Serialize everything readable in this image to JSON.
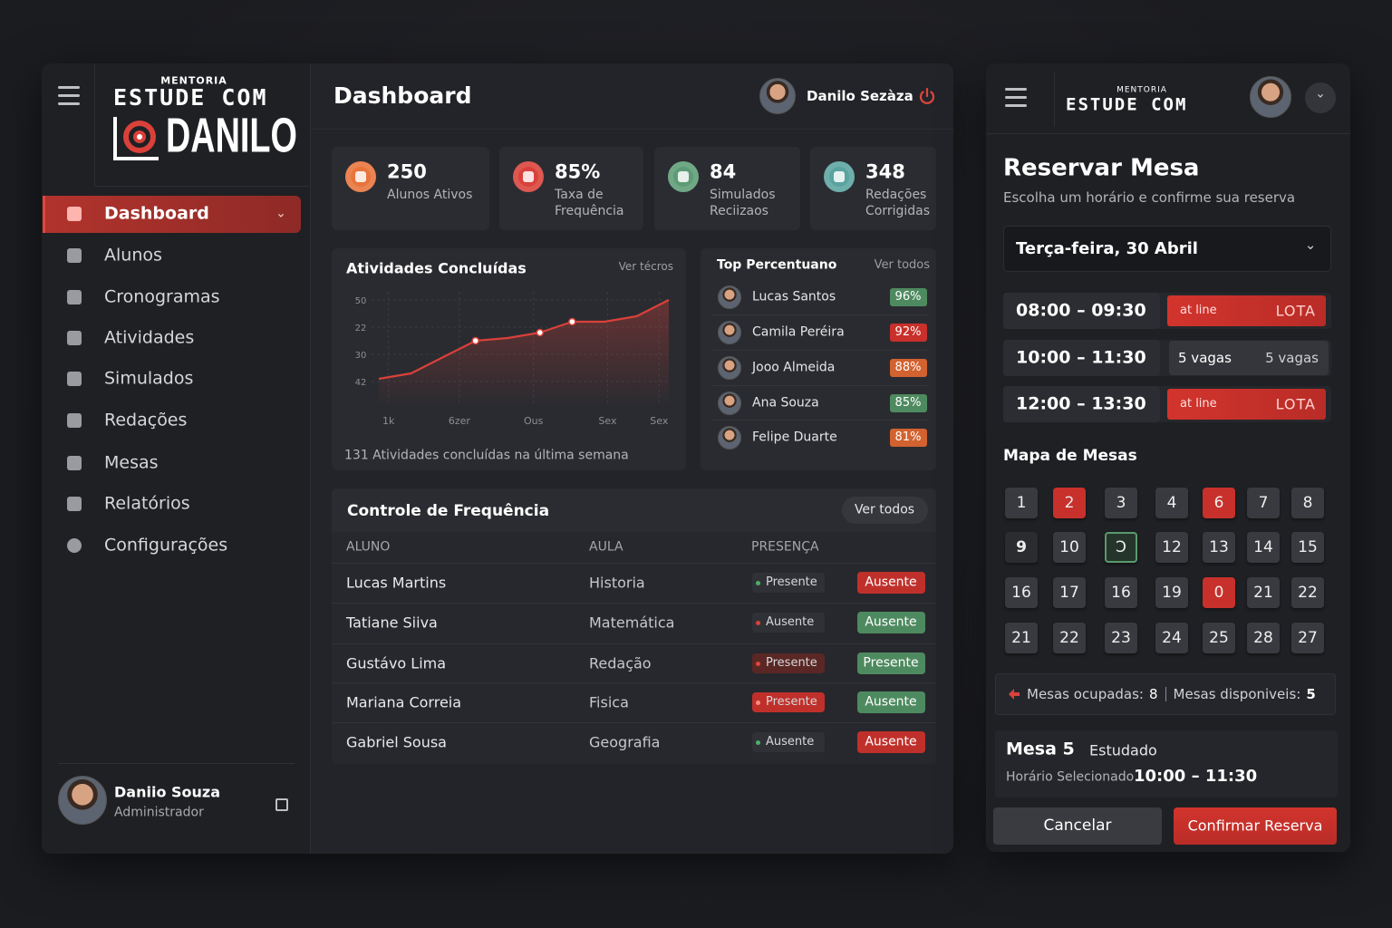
{
  "sidebar": {
    "logo": {
      "tag": "MENTORIA",
      "line1": "ESTUDE COM",
      "line2": "DANILO"
    },
    "nav": [
      "Dashboard",
      "Alunos",
      "Cronogramas",
      "Atividades",
      "Simulados",
      "Redações",
      "Mesas",
      "Relatórios",
      "Configurações"
    ],
    "user": {
      "name": "Daniio Souza",
      "role": "Administrador"
    }
  },
  "header": {
    "title": "Dashboard",
    "user": "Danilo Sezàza"
  },
  "stats": [
    {
      "value": 250,
      "label": "Alunos Ativos",
      "color": "#e8743b"
    },
    {
      "value": "85%",
      "label": "Taxa de Frequência",
      "color": "#d9413a"
    },
    {
      "value": 84,
      "label": "Simulados Reciizaos",
      "color": "#5d9c76"
    },
    {
      "value": 348,
      "label": "Redações Corrigidas",
      "color": "#5aa3a0"
    }
  ],
  "activity": {
    "title": "Atividades Concluídas",
    "link": "Ver técros",
    "footer": "131 Atividades concluídas na última semana",
    "chart_data": {
      "type": "line",
      "x": [
        0,
        1,
        2,
        3,
        4,
        5,
        6,
        7,
        8,
        9
      ],
      "values": [
        0.1,
        0.3,
        0.9,
        1.5,
        1.6,
        1.8,
        2.2,
        2.2,
        2.4,
        3.0
      ],
      "color": "#d9413a",
      "xlim": [
        0,
        9
      ],
      "xticks": [
        {
          "value": 0.3,
          "label": "1k"
        },
        {
          "value": 2.5,
          "label": "6zer"
        },
        {
          "value": 4.8,
          "label": "Ous"
        },
        {
          "value": 7.1,
          "label": "Sex"
        },
        {
          "value": 8.7,
          "label": "Sex"
        }
      ],
      "ylim": [
        -0.9,
        3.3
      ],
      "yticks": [
        {
          "value": 3,
          "label": "50"
        },
        {
          "value": 2,
          "label": "22"
        },
        {
          "value": 1,
          "label": "30"
        },
        {
          "value": 0,
          "label": "42"
        }
      ],
      "grid": true
    }
  },
  "top": {
    "title": "Top Percentuano",
    "link": "Ver todos",
    "rows": [
      {
        "name": "Lucas Santos",
        "pct": "96%",
        "color": "#4e8a5f"
      },
      {
        "name": "Camila Peréira",
        "pct": "92%",
        "color": "#c8302b"
      },
      {
        "name": "Jooo Almeida",
        "pct": "88%",
        "color": "#d2622f"
      },
      {
        "name": "Ana Souza",
        "pct": "85%",
        "color": "#4e8a5f"
      },
      {
        "name": "Felipe Duarte",
        "pct": "81%",
        "color": "#d2622f"
      }
    ]
  },
  "frequency": {
    "title": "Controle de Frequência",
    "button": "Ver todos",
    "columns": [
      "ALUNO",
      "AULA",
      "PRESENÇA"
    ],
    "rows": [
      {
        "name": "Lucas Martins",
        "aula": "Historia",
        "status": {
          "text": "Presente",
          "bg": "#303136",
          "dot": "#4caf6a"
        },
        "result": {
          "text": "Ausente",
          "bg": "#c0302b"
        }
      },
      {
        "name": "Tatiane Siiva",
        "aula": "Matemática",
        "status": {
          "text": "Ausente",
          "bg": "#303136",
          "dot": "#d9413a"
        },
        "result": {
          "text": "Ausente",
          "bg": "#4e8a5f"
        }
      },
      {
        "name": "Gustávo Lima",
        "aula": "Redação",
        "status": {
          "text": "Presente",
          "bg": "#5a2724",
          "dot": "#e0463d"
        },
        "result": {
          "text": "Presente",
          "bg": "#4e8a5f"
        }
      },
      {
        "name": "Mariana Correia",
        "aula": "Fisica",
        "status": {
          "text": "Presente",
          "bg": "#c0302b",
          "dot": "#ff8a80"
        },
        "result": {
          "text": "Ausente",
          "bg": "#4e8a5f"
        }
      },
      {
        "name": "Gabriel Sousa",
        "aula": "Geografia",
        "status": {
          "text": "Ausente",
          "bg": "#303136",
          "dot": "#4caf6a"
        },
        "result": {
          "text": "Ausente",
          "bg": "#c0302b"
        }
      }
    ]
  },
  "reserve": {
    "logo": {
      "tag": "MENTORIA",
      "line1": "ESTUDE COM"
    },
    "title": "Reservar Mesa",
    "subtitle": "Escolha um horário e confirme sua reserva",
    "date": "Terça-feira, 30 Abril",
    "slots": [
      {
        "time": "08:00 – 09:30",
        "left": "at line",
        "right": "LOTA",
        "full": true
      },
      {
        "time": "10:00 – 11:30",
        "left": "5 vagas",
        "right": "5 vagas",
        "full": false
      },
      {
        "time": "12:00 – 13:30",
        "left": "at line",
        "right": "LOTA",
        "full": true
      }
    ],
    "map_title": "Mapa de Mesas",
    "tables": [
      [
        {
          "label": "1",
          "state": "free"
        },
        {
          "label": "2",
          "state": "occupied"
        },
        {
          "label": "3",
          "state": "free"
        },
        {
          "label": "4",
          "state": "free"
        },
        {
          "label": "6",
          "state": "occupied"
        },
        {
          "label": "7",
          "state": "free"
        },
        {
          "label": "8",
          "state": "free"
        }
      ],
      [
        {
          "label": "9",
          "state": "dark"
        },
        {
          "label": "10",
          "state": "free"
        },
        {
          "label": "Ↄ",
          "state": "selected"
        },
        {
          "label": "12",
          "state": "free"
        },
        {
          "label": "13",
          "state": "free"
        },
        {
          "label": "14",
          "state": "free"
        },
        {
          "label": "15",
          "state": "free"
        }
      ],
      [
        {
          "label": "16",
          "state": "free"
        },
        {
          "label": "17",
          "state": "free"
        },
        {
          "label": "16",
          "state": "free"
        },
        {
          "label": "19",
          "state": "free"
        },
        {
          "label": "0",
          "state": "occupied"
        },
        {
          "label": "21",
          "state": "free"
        },
        {
          "label": "22",
          "state": "free"
        }
      ],
      [
        {
          "label": "21",
          "state": "free"
        },
        {
          "label": "22",
          "state": "free"
        },
        {
          "label": "23",
          "state": "free"
        },
        {
          "label": "24",
          "state": "free"
        },
        {
          "label": "25",
          "state": "free"
        },
        {
          "label": "28",
          "state": "free"
        },
        {
          "label": "27",
          "state": "free"
        }
      ]
    ],
    "summary": {
      "occupied_label": "Mesas ocupadas:",
      "occupied": 8,
      "available_label": "Mesas disponiveis:",
      "available": 5
    },
    "selection": {
      "table": "Mesa 5",
      "status": "Estudado",
      "label": "Horário Selecionado",
      "time": "10:00 – 11:30"
    },
    "cancel": "Cancelar",
    "confirm": "Confirmar Reserva"
  }
}
